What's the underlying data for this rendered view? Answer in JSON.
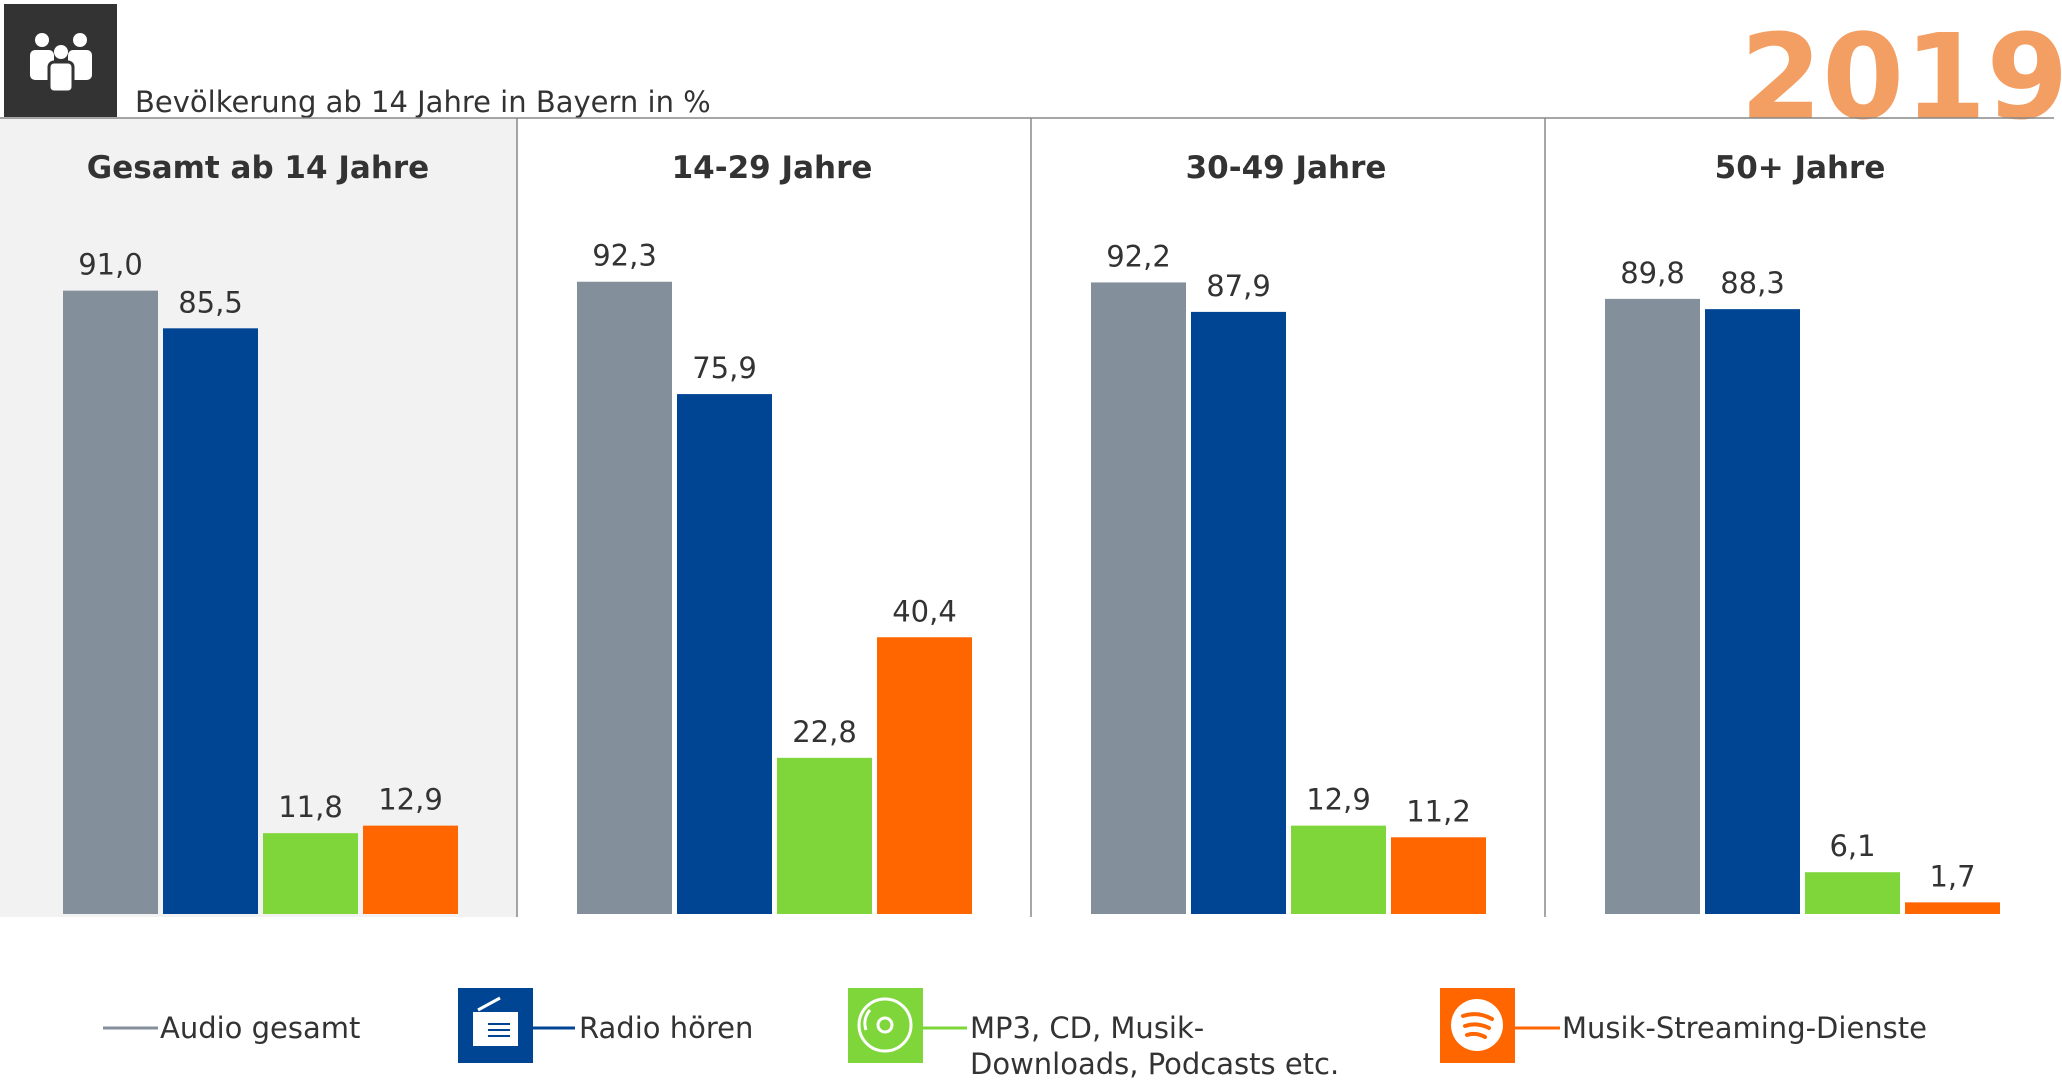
{
  "chart_data": {
    "type": "bar",
    "subtitle": "Bevölkerung ab 14 Jahre in Bayern in %",
    "year": "2019",
    "categories": [
      "Gesamt ab 14 Jahre",
      "14-29 Jahre",
      "30-49 Jahre",
      "50+ Jahre"
    ],
    "series": [
      {
        "name": "Audio gesamt",
        "color": "#838f9b",
        "values": [
          91.0,
          92.3,
          92.2,
          89.8
        ],
        "value_labels": [
          "91,0",
          "92,3",
          "92,2",
          "89,8"
        ]
      },
      {
        "name": "Radio hören",
        "color": "#004494",
        "values": [
          85.5,
          75.9,
          87.9,
          88.3
        ],
        "value_labels": [
          "85,5",
          "75,9",
          "87,9",
          "88,3"
        ]
      },
      {
        "name": "MP3, CD, Musik-Downloads, Podcasts etc.",
        "color": "#7ed63a",
        "values": [
          11.8,
          22.8,
          12.9,
          6.1
        ],
        "value_labels": [
          "11,8",
          "22,8",
          "12,9",
          "6,1"
        ]
      },
      {
        "name": "Musik-Streaming-Dienste",
        "color": "#ff6600",
        "values": [
          12.9,
          40.4,
          11.2,
          1.7
        ],
        "value_labels": [
          "12,9",
          "40,4",
          "11,2",
          "1,7"
        ]
      }
    ]
  }
}
